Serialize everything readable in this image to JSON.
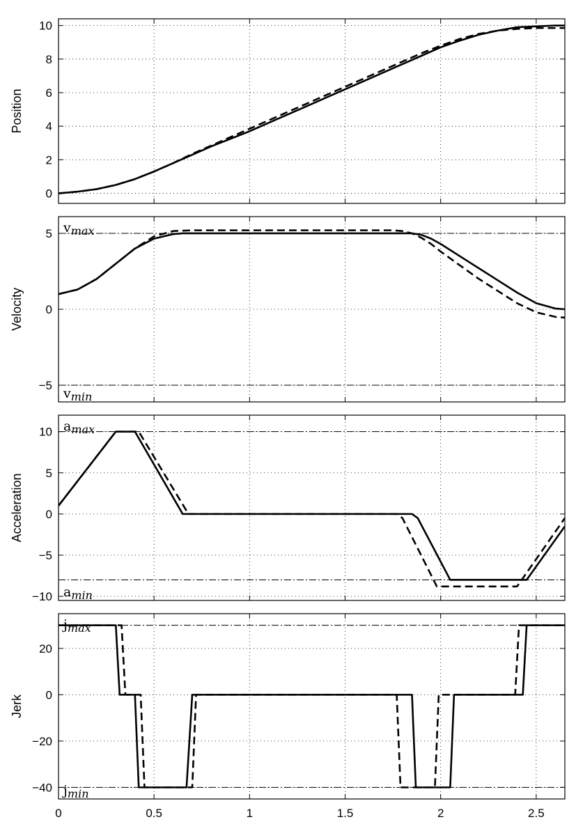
{
  "chart_data": [
    {
      "type": "line",
      "ylabel": "Position",
      "xlim": [
        0,
        2.65
      ],
      "ylim": [
        -0.6,
        10.4
      ],
      "yticks": [
        0,
        2,
        4,
        6,
        8,
        10
      ],
      "xticks": [
        0,
        0.5,
        1,
        1.5,
        2,
        2.5
      ],
      "show_xtick_labels": false,
      "grid": true,
      "limit_lines": [],
      "series": [
        {
          "style": "solid",
          "x": [
            0,
            0.1,
            0.2,
            0.3,
            0.4,
            0.5,
            0.6,
            0.7,
            0.8,
            0.9,
            1.0,
            1.1,
            1.2,
            1.3,
            1.4,
            1.5,
            1.6,
            1.7,
            1.8,
            1.9,
            2.0,
            2.1,
            2.2,
            2.3,
            2.4,
            2.5,
            2.6,
            2.65
          ],
          "y": [
            0,
            0.1,
            0.25,
            0.5,
            0.85,
            1.3,
            1.8,
            2.3,
            2.8,
            3.25,
            3.7,
            4.2,
            4.7,
            5.2,
            5.7,
            6.2,
            6.7,
            7.2,
            7.7,
            8.2,
            8.7,
            9.1,
            9.45,
            9.7,
            9.9,
            9.95,
            10.0,
            10.0
          ]
        },
        {
          "style": "dashed",
          "x": [
            0,
            0.1,
            0.2,
            0.3,
            0.4,
            0.5,
            0.6,
            0.7,
            0.8,
            0.9,
            1.0,
            1.1,
            1.2,
            1.3,
            1.4,
            1.5,
            1.6,
            1.7,
            1.8,
            1.9,
            2.0,
            2.1,
            2.2,
            2.3,
            2.4,
            2.5,
            2.6,
            2.65
          ],
          "y": [
            0,
            0.1,
            0.25,
            0.5,
            0.85,
            1.3,
            1.8,
            2.35,
            2.85,
            3.35,
            3.85,
            4.35,
            4.85,
            5.35,
            5.85,
            6.35,
            6.85,
            7.35,
            7.85,
            8.35,
            8.8,
            9.2,
            9.5,
            9.7,
            9.8,
            9.85,
            9.85,
            9.85
          ]
        }
      ]
    },
    {
      "type": "line",
      "ylabel": "Velocity",
      "xlim": [
        0,
        2.65
      ],
      "ylim": [
        -6.1,
        6.1
      ],
      "yticks": [
        -5,
        0,
        5
      ],
      "xticks": [
        0,
        0.5,
        1,
        1.5,
        2,
        2.5
      ],
      "show_xtick_labels": false,
      "grid": true,
      "limit_lines": [
        {
          "y": 5,
          "label": "v",
          "sub": "max",
          "label_pos": "top"
        },
        {
          "y": -5,
          "label": "v",
          "sub": "min",
          "label_pos": "bottom"
        }
      ],
      "series": [
        {
          "style": "solid",
          "x": [
            0,
            0.1,
            0.2,
            0.3,
            0.4,
            0.5,
            0.6,
            0.65,
            0.7,
            1.0,
            1.5,
            1.8,
            1.85,
            1.9,
            1.95,
            2.0,
            2.1,
            2.2,
            2.3,
            2.4,
            2.5,
            2.6,
            2.65
          ],
          "y": [
            1.0,
            1.3,
            2.0,
            3.0,
            4.0,
            4.65,
            4.95,
            5.0,
            5.0,
            5.0,
            5.0,
            5.0,
            5.0,
            4.9,
            4.65,
            4.3,
            3.5,
            2.7,
            1.9,
            1.1,
            0.4,
            0.05,
            0.0
          ]
        },
        {
          "style": "dashed",
          "x": [
            0,
            0.1,
            0.2,
            0.3,
            0.4,
            0.5,
            0.6,
            0.7,
            1.0,
            1.5,
            1.75,
            1.8,
            1.85,
            1.9,
            1.95,
            2.0,
            2.1,
            2.2,
            2.3,
            2.4,
            2.5,
            2.6,
            2.65
          ],
          "y": [
            1.0,
            1.3,
            2.0,
            3.0,
            4.0,
            4.8,
            5.15,
            5.2,
            5.2,
            5.2,
            5.2,
            5.15,
            5.0,
            4.7,
            4.3,
            3.8,
            2.9,
            2.0,
            1.2,
            0.4,
            -0.2,
            -0.5,
            -0.55
          ]
        }
      ]
    },
    {
      "type": "line",
      "ylabel": "Acceleration",
      "xlim": [
        0,
        2.65
      ],
      "ylim": [
        -10.5,
        12.0
      ],
      "yticks": [
        -10,
        -5,
        0,
        5,
        10
      ],
      "xticks": [
        0,
        0.5,
        1,
        1.5,
        2,
        2.5
      ],
      "show_xtick_labels": false,
      "grid": true,
      "limit_lines": [
        {
          "y": 10,
          "label": "a",
          "sub": "max",
          "label_pos": "top"
        },
        {
          "y": -8,
          "label": "a",
          "sub": "min",
          "label_pos": "bottom"
        }
      ],
      "series": [
        {
          "style": "solid",
          "x": [
            0,
            0.3,
            0.4,
            0.65,
            0.67,
            1.0,
            1.5,
            1.85,
            1.88,
            2.05,
            2.45,
            2.65
          ],
          "y": [
            1,
            10,
            10,
            0,
            0,
            0,
            0,
            0,
            -0.5,
            -8,
            -8,
            -1.5
          ]
        },
        {
          "style": "dashed",
          "x": [
            0,
            0.3,
            0.42,
            0.68,
            0.7,
            1.0,
            1.5,
            1.77,
            1.8,
            1.98,
            2.4,
            2.65
          ],
          "y": [
            1,
            10,
            10,
            0,
            0,
            0,
            0,
            0,
            -0.5,
            -8.8,
            -8.8,
            -0.5
          ]
        }
      ]
    },
    {
      "type": "line",
      "ylabel": "Jerk",
      "xlim": [
        0,
        2.65
      ],
      "ylim": [
        -45,
        35
      ],
      "yticks": [
        -40,
        -20,
        0,
        20
      ],
      "xticks": [
        0,
        0.5,
        1,
        1.5,
        2,
        2.5
      ],
      "xtick_labels": [
        "0",
        "0.5",
        "1",
        "1.5",
        "2",
        "2.5"
      ],
      "show_xtick_labels": true,
      "grid": true,
      "limit_lines": [
        {
          "y": 30,
          "label": "j",
          "sub": "max",
          "label_pos": "top"
        },
        {
          "y": -40,
          "label": "j",
          "sub": "min",
          "label_pos": "bottom"
        }
      ],
      "series": [
        {
          "style": "solid",
          "x": [
            0,
            0.3,
            0.32,
            0.4,
            0.42,
            0.67,
            0.7,
            1.0,
            1.5,
            1.85,
            1.87,
            2.05,
            2.07,
            2.43,
            2.45,
            2.65
          ],
          "y": [
            30,
            30,
            0,
            0,
            -40,
            -40,
            0,
            0,
            0,
            0,
            -40,
            -40,
            0,
            0,
            30,
            30
          ]
        },
        {
          "style": "dashed",
          "x": [
            0,
            0.33,
            0.35,
            0.43,
            0.45,
            0.7,
            0.72,
            1.0,
            1.5,
            1.77,
            1.79,
            1.97,
            1.99,
            2.39,
            2.41,
            2.65
          ],
          "y": [
            30,
            30,
            0,
            0,
            -40,
            -40,
            0,
            0,
            0,
            0,
            -40,
            -40,
            0,
            0,
            30,
            30
          ]
        }
      ]
    }
  ]
}
